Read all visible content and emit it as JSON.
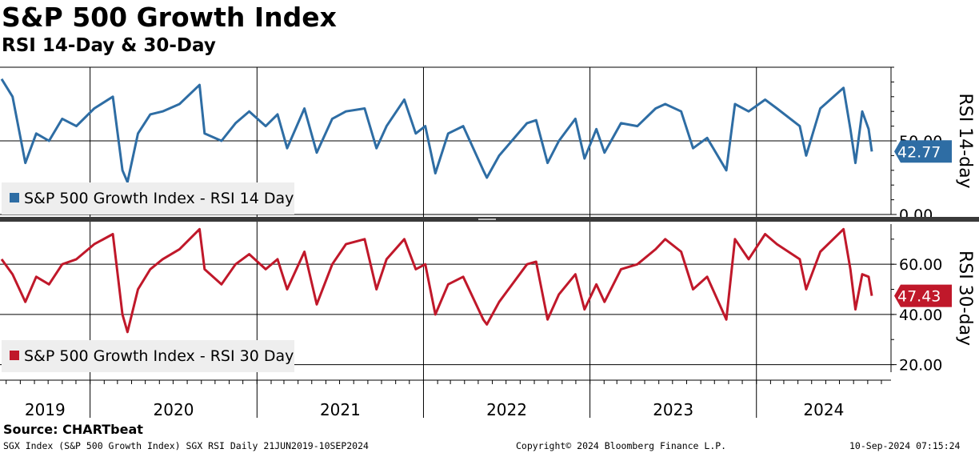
{
  "header": {
    "title": "S&P 500 Growth Index",
    "subtitle": "RSI 14-Day & 30-Day"
  },
  "source_label": "Source: CHARTbeat",
  "footer": {
    "left": "SGX Index (S&P 500 Growth Index) SGX RSI  Daily 21JUN2019-10SEP2024",
    "center": "Copyright© 2024 Bloomberg Finance L.P.",
    "right": "10-Sep-2024 07:15:24"
  },
  "colors": {
    "rsi14": "#2e6da4",
    "rsi30": "#c0182a"
  },
  "chart_data": [
    {
      "type": "line",
      "title": "",
      "ylabel": "RSI 14-day",
      "ylim": [
        0,
        100
      ],
      "yticks": [
        "0.00",
        "50.00"
      ],
      "ytick_values": [
        0,
        50
      ],
      "x": [
        "2019-06-21",
        "2019-07-15",
        "2019-08-12",
        "2019-09-05",
        "2019-10-03",
        "2019-11-01",
        "2019-12-02",
        "2020-01-10",
        "2020-02-20",
        "2020-03-12",
        "2020-03-23",
        "2020-04-15",
        "2020-05-12",
        "2020-06-08",
        "2020-07-15",
        "2020-08-28",
        "2020-09-08",
        "2020-10-15",
        "2020-11-15",
        "2020-12-15",
        "2021-01-20",
        "2021-02-15",
        "2021-03-08",
        "2021-04-15",
        "2021-05-12",
        "2021-06-15",
        "2021-07-15",
        "2021-08-25",
        "2021-09-20",
        "2021-10-12",
        "2021-11-20",
        "2021-12-15",
        "2022-01-05",
        "2022-01-27",
        "2022-02-24",
        "2022-03-29",
        "2022-05-12",
        "2022-05-20",
        "2022-06-16",
        "2022-08-16",
        "2022-09-05",
        "2022-09-30",
        "2022-10-25",
        "2022-11-30",
        "2022-12-20",
        "2023-01-15",
        "2023-02-02",
        "2023-03-10",
        "2023-04-15",
        "2023-05-25",
        "2023-06-15",
        "2023-07-20",
        "2023-08-15",
        "2023-09-15",
        "2023-10-27",
        "2023-11-15",
        "2023-12-15",
        "2024-01-20",
        "2024-02-15",
        "2024-04-05",
        "2024-04-19",
        "2024-05-20",
        "2024-07-10",
        "2024-07-25",
        "2024-08-05",
        "2024-08-20",
        "2024-09-03",
        "2024-09-10"
      ],
      "series": [
        {
          "name": "S&P 500 Growth Index - RSI 14 Day",
          "values": [
            92,
            80,
            35,
            55,
            50,
            65,
            60,
            72,
            80,
            30,
            22,
            55,
            68,
            70,
            75,
            88,
            55,
            50,
            62,
            70,
            60,
            68,
            45,
            72,
            42,
            65,
            70,
            72,
            45,
            60,
            78,
            55,
            60,
            28,
            55,
            60,
            30,
            25,
            40,
            62,
            64,
            35,
            50,
            65,
            38,
            58,
            42,
            62,
            60,
            72,
            75,
            70,
            45,
            52,
            30,
            75,
            70,
            78,
            72,
            60,
            40,
            72,
            86,
            58,
            35,
            70,
            58,
            42.77
          ]
        }
      ],
      "last_value_label": "42.77"
    },
    {
      "type": "line",
      "title": "",
      "ylabel": "RSI 30-day",
      "ylim": [
        17,
        76
      ],
      "yticks": [
        "20.00",
        "40.00",
        "60.00"
      ],
      "ytick_values": [
        20,
        40,
        60
      ],
      "x": [
        "2019-06-21",
        "2019-07-15",
        "2019-08-12",
        "2019-09-05",
        "2019-10-03",
        "2019-11-01",
        "2019-12-02",
        "2020-01-10",
        "2020-02-20",
        "2020-03-12",
        "2020-03-23",
        "2020-04-15",
        "2020-05-12",
        "2020-06-08",
        "2020-07-15",
        "2020-08-28",
        "2020-09-08",
        "2020-10-15",
        "2020-11-15",
        "2020-12-15",
        "2021-01-20",
        "2021-02-15",
        "2021-03-08",
        "2021-04-15",
        "2021-05-12",
        "2021-06-15",
        "2021-07-15",
        "2021-08-25",
        "2021-09-20",
        "2021-10-12",
        "2021-11-20",
        "2021-12-15",
        "2022-01-05",
        "2022-01-27",
        "2022-02-24",
        "2022-03-29",
        "2022-05-12",
        "2022-05-20",
        "2022-06-16",
        "2022-08-16",
        "2022-09-05",
        "2022-09-30",
        "2022-10-25",
        "2022-11-30",
        "2022-12-20",
        "2023-01-15",
        "2023-02-02",
        "2023-03-10",
        "2023-04-15",
        "2023-05-25",
        "2023-06-15",
        "2023-07-20",
        "2023-08-15",
        "2023-09-15",
        "2023-10-27",
        "2023-11-15",
        "2023-12-15",
        "2024-01-20",
        "2024-02-15",
        "2024-04-05",
        "2024-04-19",
        "2024-05-20",
        "2024-07-10",
        "2024-07-25",
        "2024-08-05",
        "2024-08-20",
        "2024-09-03",
        "2024-09-10"
      ],
      "series": [
        {
          "name": "S&P 500 Growth Index - RSI 30 Day",
          "values": [
            62,
            56,
            45,
            55,
            52,
            60,
            62,
            68,
            72,
            40,
            33,
            50,
            58,
            62,
            66,
            74,
            58,
            52,
            60,
            64,
            58,
            62,
            50,
            65,
            44,
            60,
            68,
            70,
            50,
            62,
            70,
            58,
            60,
            40,
            52,
            55,
            38,
            36,
            45,
            60,
            61,
            38,
            48,
            56,
            42,
            52,
            45,
            58,
            60,
            66,
            70,
            65,
            50,
            55,
            38,
            70,
            62,
            72,
            68,
            62,
            50,
            65,
            74,
            58,
            42,
            56,
            55,
            47.43
          ]
        }
      ],
      "last_value_label": "47.43"
    }
  ],
  "x_axis": {
    "years": [
      "2019",
      "2020",
      "2021",
      "2022",
      "2023",
      "2024"
    ]
  }
}
